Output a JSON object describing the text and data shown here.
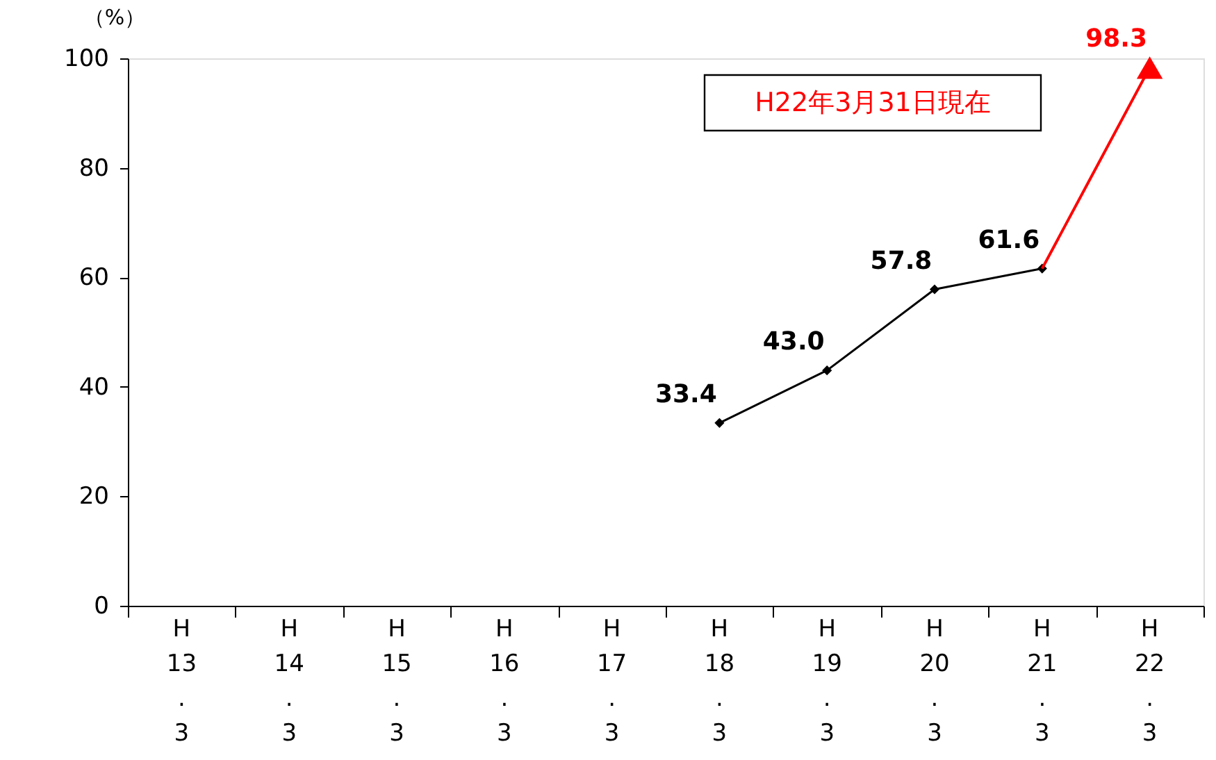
{
  "chart_data": {
    "type": "line",
    "ylabel": "（%）",
    "categories": [
      "H\n13\n.\n3",
      "H\n14\n.\n3",
      "H\n15\n.\n3",
      "H\n16\n.\n3",
      "H\n17\n.\n3",
      "H\n18\n.\n3",
      "H\n19\n.\n3",
      "H\n20\n.\n3",
      "H\n21\n.\n3",
      "H\n22\n.\n3"
    ],
    "series": [
      {
        "color": "#000000",
        "marker": "diamond",
        "values": [
          null,
          null,
          null,
          null,
          null,
          33.4,
          43.0,
          57.8,
          61.6,
          null
        ],
        "value_labels": [
          null,
          null,
          null,
          null,
          null,
          "33.4",
          "43.0",
          "57.8",
          "61.6",
          null
        ]
      },
      {
        "color": "#ff0000",
        "marker": "none",
        "values": [
          null,
          null,
          null,
          null,
          null,
          null,
          null,
          null,
          61.6,
          98.3
        ]
      },
      {
        "type": "scatter",
        "color": "#ff0000",
        "marker": "triangle",
        "values": [
          null,
          null,
          null,
          null,
          null,
          null,
          null,
          null,
          null,
          98.3
        ],
        "value_labels": [
          null,
          null,
          null,
          null,
          null,
          null,
          null,
          null,
          null,
          "98.3"
        ]
      }
    ],
    "ylim": [
      0,
      100
    ],
    "yticks": [
      0,
      20,
      40,
      60,
      80,
      100
    ],
    "grid": false,
    "annotations": [
      "H22年3月31日現在"
    ]
  }
}
